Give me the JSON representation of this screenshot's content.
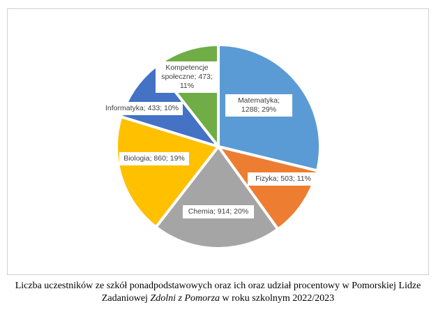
{
  "chart_data": {
    "type": "pie",
    "title": "",
    "legend": "none",
    "slices": [
      {
        "label": "Matematyka; 1288; 29%",
        "category": "Matematyka",
        "value": 1288,
        "percent": 29,
        "color": "#5b9bd5"
      },
      {
        "label": "Fizyka; 503; 11%",
        "category": "Fizyka",
        "value": 503,
        "percent": 11,
        "color": "#ed7d31"
      },
      {
        "label": "Chemia; 914; 20%",
        "category": "Chemia",
        "value": 914,
        "percent": 20,
        "color": "#a5a5a5"
      },
      {
        "label": "Biologia; 860; 19%",
        "category": "Biologia",
        "value": 860,
        "percent": 19,
        "color": "#ffc000"
      },
      {
        "label": "Informatyka; 433; 10%",
        "category": "Informatyka",
        "value": 433,
        "percent": 10,
        "color": "#4472c4"
      },
      {
        "label": "Kompetencje społeczne; 473; 11%",
        "category": "Kompetencje społeczne",
        "value": 473,
        "percent": 11,
        "color": "#70ad47"
      }
    ]
  },
  "caption": {
    "part1": "Liczba uczestników ze szkół ponadpodstawowych oraz ich oraz udział procentowy w Pomorskiej Lidze Zadaniowej ",
    "italic": "Zdolni z Pomorza",
    "part2": " w roku szkolnym 2022/2023"
  }
}
